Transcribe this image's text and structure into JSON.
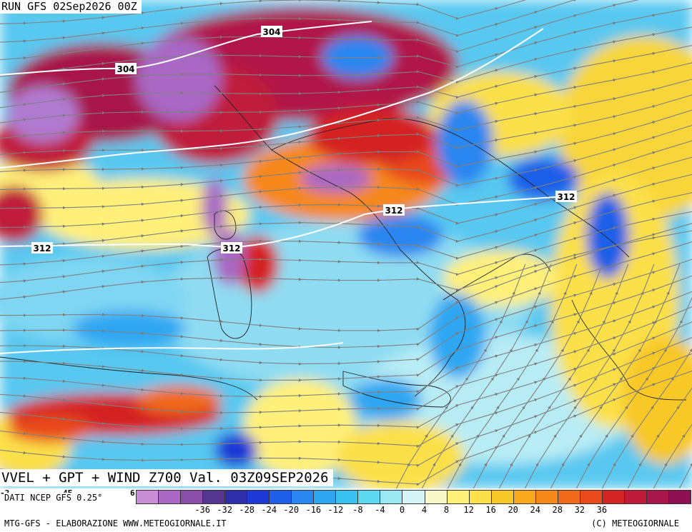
{
  "header": {
    "run_label": "RUN GFS 02Sep2026 00Z"
  },
  "map": {
    "title": "VVEL + GPT + WIND Z700 Val. 03Z09SEP2026",
    "isoline_labels": [
      "304",
      "304",
      "312",
      "312",
      "312",
      "312"
    ],
    "colors": {
      "sea_background": "#4fc3f0",
      "streamline": "#808080",
      "isoline": "#ffffff",
      "coastline": "#222222"
    }
  },
  "legend": {
    "edge_ticks": [
      "-2",
      "4E",
      "6"
    ],
    "source": "DATI NCEP GFS 0.25°",
    "ticks": [
      "-36",
      "-32",
      "-28",
      "-24",
      "-20",
      "-16",
      "-12",
      "-8",
      "-4",
      "0",
      "4",
      "8",
      "12",
      "16",
      "20",
      "24",
      "28",
      "32",
      "36"
    ],
    "colors": [
      "#c88fd6",
      "#a868c4",
      "#8a4fa8",
      "#55368f",
      "#2e2fa8",
      "#1f39d6",
      "#1f5ee8",
      "#2a86f0",
      "#2fa6f2",
      "#37c2f2",
      "#5fd8f2",
      "#9ae8f4",
      "#d4f4f6",
      "#f8f8c8",
      "#fff07a",
      "#fce04a",
      "#f8c828",
      "#f7a81c",
      "#f6881a",
      "#f06a1a",
      "#e84a1c",
      "#d42424",
      "#c01c3a",
      "#a8164a",
      "#8e1052"
    ]
  },
  "footer": {
    "left": "MTG-GFS - ELABORAZIONE WWW.METEOGIORNALE.IT",
    "right": "(C) METEOGIORNALE"
  }
}
